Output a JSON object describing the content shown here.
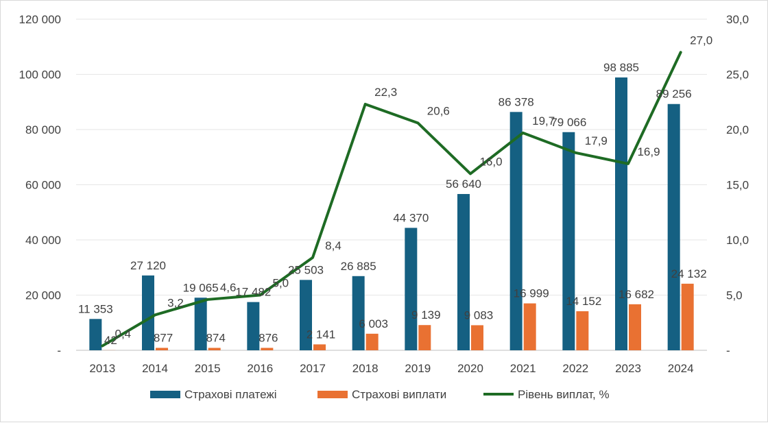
{
  "chart_data": {
    "type": "bar",
    "categories": [
      "2013",
      "2014",
      "2015",
      "2016",
      "2017",
      "2018",
      "2019",
      "2020",
      "2021",
      "2022",
      "2023",
      "2024"
    ],
    "series": [
      {
        "name": "Страхові платежі",
        "kind": "bar",
        "axis": "left",
        "color": "#156082",
        "values": [
          11353,
          27120,
          19065,
          17482,
          25503,
          26885,
          44370,
          56640,
          86378,
          79066,
          98885,
          89256
        ],
        "labels": [
          "11 353",
          "27 120",
          "19 065",
          "17 482",
          "25 503",
          "26 885",
          "44 370",
          "56 640",
          "86 378",
          "79 066",
          "98 885",
          "89 256"
        ]
      },
      {
        "name": "Страхові виплати",
        "kind": "bar",
        "axis": "left",
        "color": "#E97132",
        "values": [
          42,
          877,
          874,
          876,
          2141,
          6003,
          9139,
          9083,
          16999,
          14152,
          16682,
          24132
        ],
        "labels": [
          "42",
          "877",
          "874",
          "876",
          "2 141",
          "6 003",
          "9 139",
          "9 083",
          "16 999",
          "14 152",
          "16 682",
          "24 132"
        ]
      },
      {
        "name": "Рівень виплат, %",
        "kind": "line",
        "axis": "right",
        "color": "#1E6B24",
        "values": [
          0.4,
          3.2,
          4.6,
          5.0,
          8.4,
          22.3,
          20.6,
          16.0,
          19.7,
          17.9,
          16.9,
          27.0
        ],
        "labels": [
          "0,4",
          "3,2",
          "4,6",
          "5,0",
          "8,4",
          "22,3",
          "20,6",
          "16,0",
          "19,7",
          "17,9",
          "16,9",
          "27,0"
        ]
      }
    ],
    "y_left": {
      "min": 0,
      "max": 120000,
      "ticks": [
        "-",
        "20 000",
        "40 000",
        "60 000",
        "80 000",
        "100 000",
        "120 000"
      ]
    },
    "y_right": {
      "min": 0,
      "max": 30,
      "ticks": [
        "-",
        "5,0",
        "10,0",
        "15,0",
        "20,0",
        "25,0",
        "30,0"
      ]
    },
    "grid": true,
    "legend": "bottom",
    "title": "",
    "xlabel": "",
    "ylabel": ""
  }
}
